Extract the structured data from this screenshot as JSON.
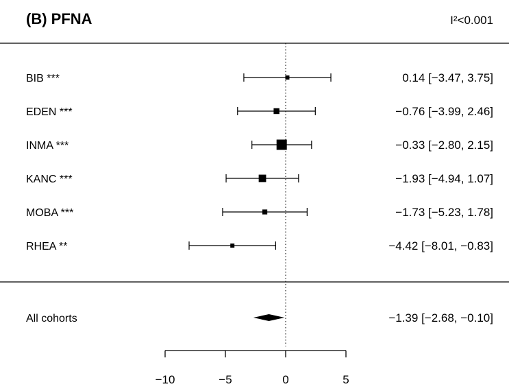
{
  "chart_data": {
    "type": "forest",
    "title": "(B) PFNA",
    "heterogeneity": "I²<0.001",
    "xlim": [
      -10,
      5
    ],
    "x_ticks": [
      "−10",
      "−5",
      "0",
      "5"
    ],
    "x_tick_values": [
      -10,
      -5,
      0,
      5
    ],
    "reference_line": 0,
    "studies": [
      {
        "label": "BIB ***",
        "estimate": 0.14,
        "lower": -3.47,
        "upper": 3.75,
        "weight": 1.0,
        "ci_text": "0.14 [−3.47,  3.75]"
      },
      {
        "label": "EDEN ***",
        "estimate": -0.76,
        "lower": -3.99,
        "upper": 2.46,
        "weight": 1.4,
        "ci_text": "−0.76 [−3.99,  2.46]"
      },
      {
        "label": "INMA ***",
        "estimate": -0.33,
        "lower": -2.8,
        "upper": 2.15,
        "weight": 2.5,
        "ci_text": "−0.33 [−2.80,  2.15]"
      },
      {
        "label": "KANC ***",
        "estimate": -1.93,
        "lower": -4.94,
        "upper": 1.07,
        "weight": 1.8,
        "ci_text": "−1.93 [−4.94,  1.07]"
      },
      {
        "label": "MOBA ***",
        "estimate": -1.73,
        "lower": -5.23,
        "upper": 1.78,
        "weight": 1.2,
        "ci_text": "−1.73 [−5.23,  1.78]"
      },
      {
        "label": "RHEA **",
        "estimate": -4.42,
        "lower": -8.01,
        "upper": -0.83,
        "weight": 1.0,
        "ci_text": "−4.42 [−8.01, −0.83]"
      }
    ],
    "summary": {
      "label": "All cohorts",
      "estimate": -1.39,
      "lower": -2.68,
      "upper": -0.1,
      "ci_text": "−1.39 [−2.68, −0.10]"
    },
    "colors": {
      "ink": "#000000"
    }
  }
}
